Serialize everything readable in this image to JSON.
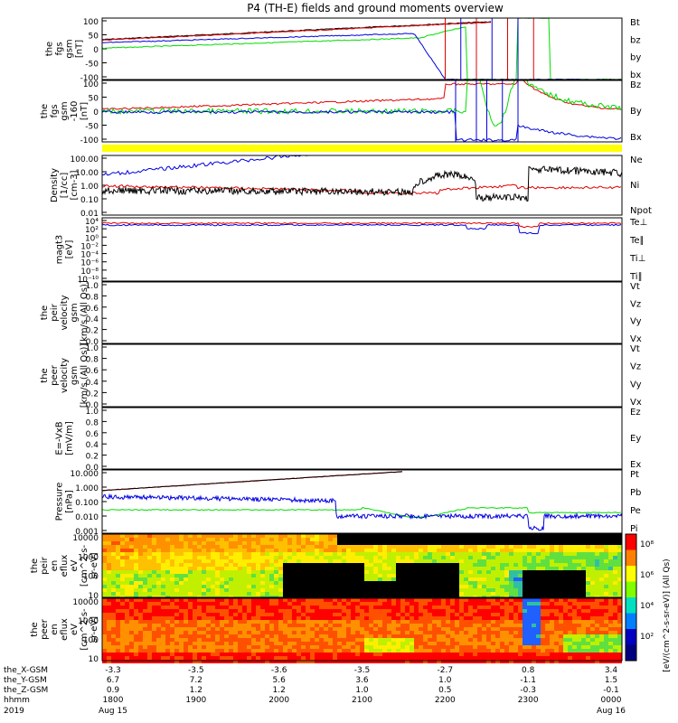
{
  "title": "P4 (TH-E) fields and ground moments overview",
  "colors": {
    "black": "#000000",
    "red": "#e00000",
    "green": "#00dd00",
    "blue": "#0000e0",
    "yellow": "#ffff00"
  },
  "panels": [
    {
      "id": "fgs",
      "ylabel": [
        "the",
        "fgs",
        "gsm",
        "[nT]"
      ],
      "yticks": [
        "100",
        "50",
        "0",
        "-50",
        "-100"
      ],
      "ylim": [
        -100,
        100
      ],
      "legend": [
        {
          "text": "Bt",
          "color": "#000000"
        },
        {
          "text": "bz",
          "color": "#e00000"
        },
        {
          "text": "by",
          "color": "#00dd00"
        },
        {
          "text": "bx",
          "color": "#0000e0"
        }
      ]
    },
    {
      "id": "fgs2",
      "ylabel": [
        "the",
        "fgs",
        "gsm",
        "-160",
        "[nT]"
      ],
      "yticks": [
        "100",
        "50",
        "0",
        "-50",
        "-100"
      ],
      "ylim": [
        -125,
        125
      ],
      "legend": [
        {
          "text": "Bz",
          "color": "#e00000"
        },
        {
          "text": "By",
          "color": "#00dd00"
        },
        {
          "text": "Bx",
          "color": "#0000e0"
        }
      ]
    },
    {
      "id": "density",
      "ylabel": [
        "Density",
        "[1/cc]",
        "[cm-3]"
      ],
      "yticks": [
        "100.00",
        "10.00",
        "1.00",
        "0.10",
        "0.01"
      ],
      "legend": [
        {
          "text": "Ne",
          "color": "#e00000"
        },
        {
          "text": "Ni",
          "color": "#000000"
        },
        {
          "text": "Npot",
          "color": "#0000e0"
        }
      ]
    },
    {
      "id": "magt3",
      "ylabel": [
        "magt3",
        "[eV]"
      ],
      "yticks": [
        "10⁴",
        "10²",
        "10⁰",
        "10⁻²",
        "10⁻⁴",
        "10⁻⁶",
        "10⁻⁸",
        "10⁻¹⁰"
      ],
      "legend": [
        {
          "text": "Te⊥",
          "color": "#e00000"
        },
        {
          "text": "Te∥",
          "color": "#000000"
        },
        {
          "text": "Ti⊥",
          "color": "#00dd00"
        },
        {
          "text": "Ti∥",
          "color": "#00dd00"
        }
      ]
    },
    {
      "id": "peir_vel",
      "ylabel": [
        "the",
        "peir",
        "velocity",
        "gsm",
        "[km/s (All Qs)]"
      ],
      "yticks": [
        "1.0",
        "0.8",
        "0.6",
        "0.4",
        "0.2",
        "0.0"
      ],
      "legend": [
        {
          "text": "Vt",
          "color": "#000000"
        },
        {
          "text": "Vz",
          "color": "#e00000"
        },
        {
          "text": "Vy",
          "color": "#00dd00"
        },
        {
          "text": "Vx",
          "color": "#0000e0"
        }
      ]
    },
    {
      "id": "peer_vel",
      "ylabel": [
        "the",
        "peer",
        "velocity",
        "gsm",
        "[km/s (All Qs)]"
      ],
      "yticks": [
        "1.0",
        "0.8",
        "0.6",
        "0.4",
        "0.2",
        "0.0"
      ],
      "legend": [
        {
          "text": "Vt",
          "color": "#000000"
        },
        {
          "text": "Vz",
          "color": "#e00000"
        },
        {
          "text": "Vy",
          "color": "#00dd00"
        },
        {
          "text": "Vx",
          "color": "#0000e0"
        }
      ]
    },
    {
      "id": "efield",
      "ylabel": [
        "E=-VxB",
        "[mV/m]"
      ],
      "yticks": [
        "1.0",
        "0.8",
        "0.6",
        "0.4",
        "0.2",
        "0.0"
      ],
      "legend": [
        {
          "text": "Ez",
          "color": "#e00000"
        },
        {
          "text": "Ey",
          "color": "#00dd00"
        },
        {
          "text": "Ex",
          "color": "#0000e0"
        }
      ]
    },
    {
      "id": "pressure",
      "ylabel": [
        "Pressure",
        "[nPa]"
      ],
      "yticks": [
        "10.000",
        "1.000",
        "0.100",
        "0.010",
        "0.001"
      ],
      "legend": [
        {
          "text": "Pt",
          "color": "#000000"
        },
        {
          "text": "Pb",
          "color": "#e00000"
        },
        {
          "text": "Pe",
          "color": "#00dd00"
        },
        {
          "text": "Pi",
          "color": "#0000e0"
        }
      ]
    },
    {
      "id": "peir_spec",
      "ylabel": [
        "the",
        "peir",
        "en",
        "eflux",
        "eV",
        "[cm^2-s-",
        "sr-eV]"
      ],
      "yticks": [
        "10000",
        "1000",
        "100",
        "10"
      ]
    },
    {
      "id": "peer_spec",
      "ylabel": [
        "the",
        "peer",
        "en",
        "eflux",
        "eV",
        "[cm^2-s-",
        "sr-eV]"
      ],
      "yticks": [
        "10000",
        "1000",
        "100",
        "10"
      ]
    }
  ],
  "colorbar": {
    "ticks": [
      "10⁸",
      "10⁶",
      "10⁴",
      "10²"
    ],
    "label": "[eV/(cm^2-s-sr-eV)] (All Qs)",
    "overlap_label": "[eV/(cm^2-s-sr-eV)] (All Qs)"
  },
  "xaxis": {
    "row_labels": [
      "the_X-GSM",
      "the_Y-GSM",
      "the_Z-GSM",
      "hhmm",
      "2019"
    ],
    "ticks": [
      {
        "x": "-3.3",
        "y": "6.7",
        "z": "0.9",
        "hhmm": "1800",
        "date": "Aug 15"
      },
      {
        "x": "-3.5",
        "y": "7.2",
        "z": "1.2",
        "hhmm": "1900",
        "date": ""
      },
      {
        "x": "-3.6",
        "y": "5.6",
        "z": "1.2",
        "hhmm": "2000",
        "date": ""
      },
      {
        "x": "-3.5",
        "y": "3.6",
        "z": "1.0",
        "hhmm": "2100",
        "date": ""
      },
      {
        "x": "-2.7",
        "y": "1.0",
        "z": "0.5",
        "hhmm": "2200",
        "date": ""
      },
      {
        "x": "0.8",
        "y": "-1.1",
        "z": "-0.3",
        "hhmm": "2300",
        "date": ""
      },
      {
        "x": "3.4",
        "y": "1.5",
        "z": "-0.1",
        "hhmm": "0000",
        "date": "Aug 16"
      }
    ]
  },
  "chart_data": {
    "type": "line",
    "title": "P4 (TH-E) fields and ground moments overview",
    "x_hhmm": [
      "1800",
      "1900",
      "2000",
      "2100",
      "2200",
      "2300",
      "0000"
    ],
    "series": [
      {
        "name": "Bt",
        "panel": "fgs",
        "values": [
          30,
          45,
          62,
          90,
          null,
          null,
          null
        ]
      },
      {
        "name": "bz",
        "panel": "fgs",
        "values": [
          28,
          43,
          60,
          88,
          null,
          null,
          null
        ]
      },
      {
        "name": "by",
        "panel": "fgs",
        "values": [
          2,
          10,
          20,
          40,
          -100,
          -100,
          -100
        ]
      },
      {
        "name": "bx",
        "panel": "fgs",
        "values": [
          20,
          28,
          36,
          45,
          -100,
          -100,
          -100
        ]
      },
      {
        "name": "Ni",
        "panel": "density",
        "values": [
          0.5,
          0.4,
          0.35,
          0.3,
          3,
          1,
          1.5
        ]
      },
      {
        "name": "Ne",
        "panel": "density",
        "values": [
          1.0,
          0.9,
          0.8,
          0.5,
          0.2,
          0.5,
          0.8
        ]
      },
      {
        "name": "Npot",
        "panel": "density",
        "values": [
          5,
          30,
          60,
          120,
          null,
          null,
          null
        ]
      },
      {
        "name": "Pt",
        "panel": "pressure",
        "values": [
          0.5,
          1,
          2.5,
          5,
          null,
          null,
          null
        ]
      },
      {
        "name": "Pb",
        "panel": "pressure",
        "values": [
          0.5,
          1,
          2.5,
          5,
          null,
          null,
          null
        ]
      },
      {
        "name": "Pe",
        "panel": "pressure",
        "values": [
          0.03,
          0.03,
          0.03,
          0.04,
          0.007,
          0.04,
          0.02
        ]
      },
      {
        "name": "Pi",
        "panel": "pressure",
        "values": [
          0.2,
          0.2,
          0.15,
          0.1,
          0.007,
          0.002,
          0.01
        ]
      }
    ]
  }
}
